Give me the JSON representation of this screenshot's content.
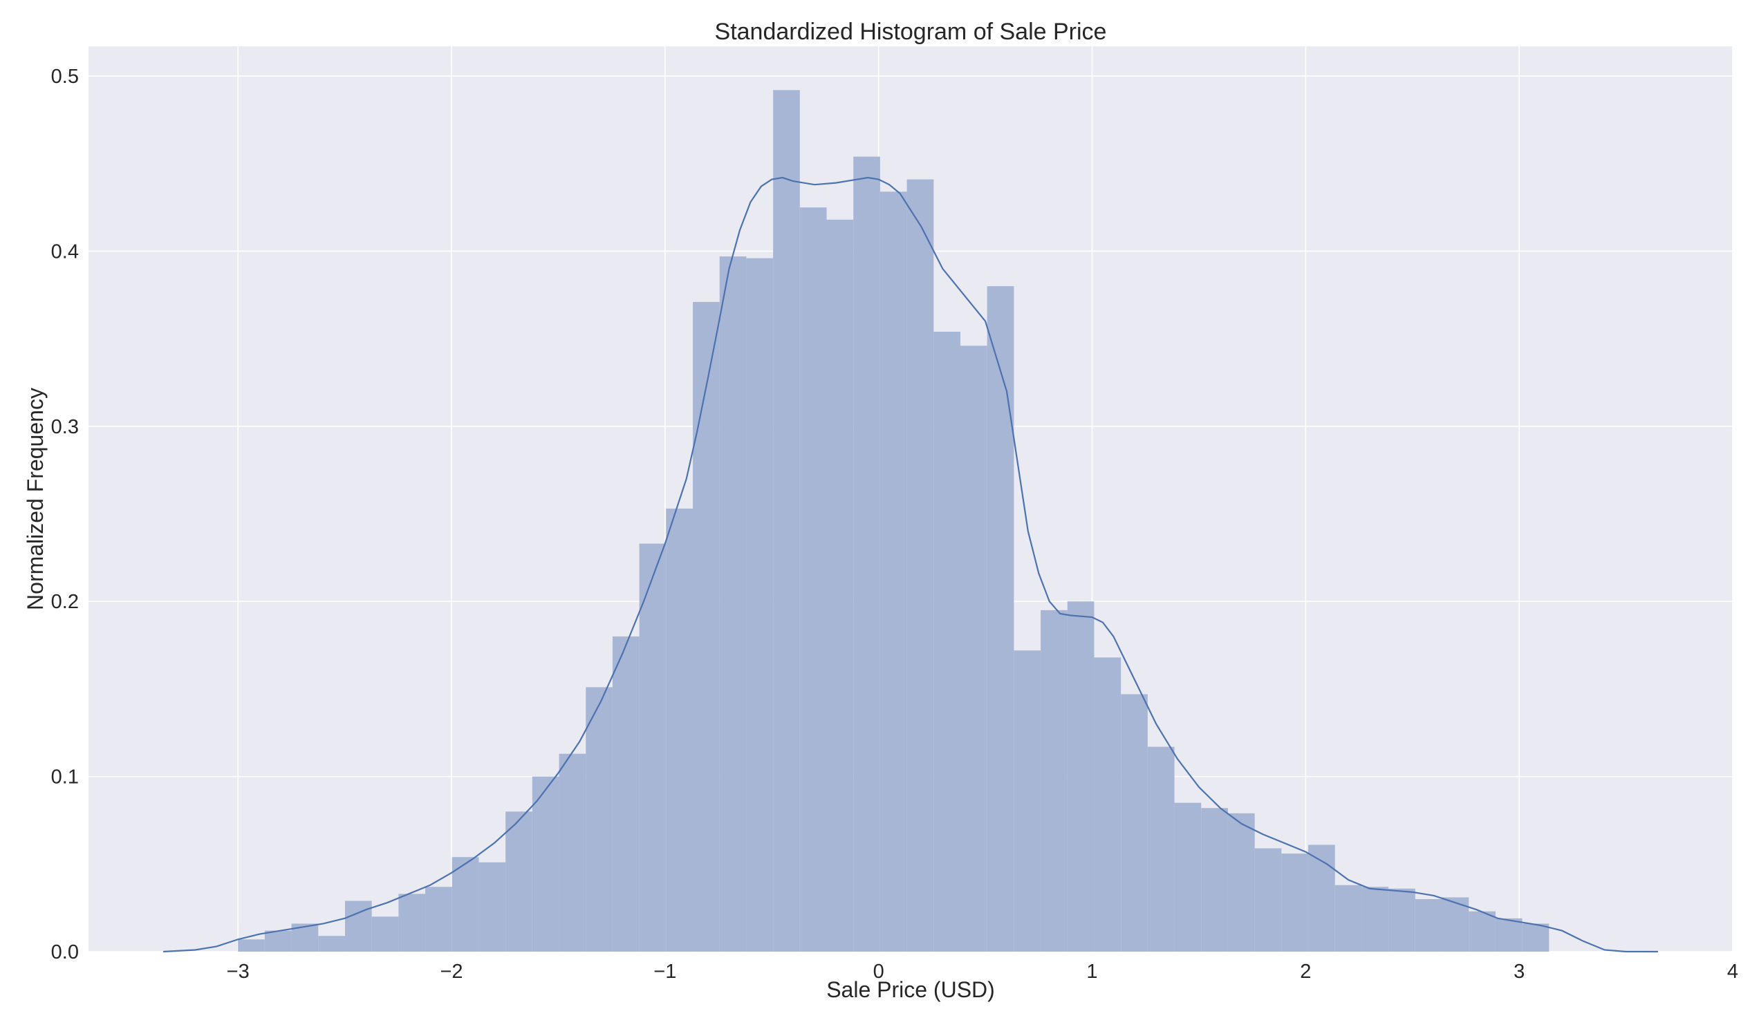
{
  "chart_data": {
    "type": "bar",
    "title": "Standardized Histogram of Sale Price",
    "xlabel": "Sale Price (USD)",
    "ylabel": "Normalized Frequency",
    "xlim": [
      -3.7,
      4.0
    ],
    "ylim": [
      0,
      0.517
    ],
    "xticks": [
      -3,
      -2,
      -1,
      0,
      1,
      2,
      3,
      4
    ],
    "xtick_labels": [
      "−3",
      "−2",
      "−1",
      "0",
      "1",
      "2",
      "3",
      "4"
    ],
    "yticks": [
      0,
      0.1,
      0.2,
      0.3,
      0.4,
      0.5
    ],
    "ytick_labels": [
      "0.0",
      "0.1",
      "0.2",
      "0.3",
      "0.4",
      "0.5"
    ],
    "grid": true,
    "colors": {
      "background": "#eaeaf2",
      "bar": "#a8b6d5",
      "line": "#4c72b0",
      "grid": "#ffffff"
    },
    "histogram": {
      "bin_start": -3.0,
      "bin_width": 0.1253,
      "values": [
        0.007,
        0.012,
        0.016,
        0.009,
        0.029,
        0.02,
        0.033,
        0.037,
        0.054,
        0.051,
        0.08,
        0.1,
        0.113,
        0.151,
        0.18,
        0.233,
        0.253,
        0.371,
        0.397,
        0.396,
        0.492,
        0.425,
        0.418,
        0.454,
        0.434,
        0.441,
        0.354,
        0.346,
        0.38,
        0.172,
        0.195,
        0.2,
        0.168,
        0.147,
        0.117,
        0.085,
        0.082,
        0.079,
        0.059,
        0.056,
        0.061,
        0.038,
        0.037,
        0.036,
        0.03,
        0.031,
        0.023,
        0.019,
        0.016
      ]
    },
    "kde": {
      "x": [
        -3.35,
        -3.2,
        -3.1,
        -3.0,
        -2.9,
        -2.8,
        -2.7,
        -2.6,
        -2.5,
        -2.4,
        -2.3,
        -2.2,
        -2.1,
        -2.0,
        -1.9,
        -1.8,
        -1.7,
        -1.6,
        -1.5,
        -1.4,
        -1.3,
        -1.2,
        -1.1,
        -1.0,
        -0.9,
        -0.85,
        -0.8,
        -0.75,
        -0.7,
        -0.65,
        -0.6,
        -0.55,
        -0.5,
        -0.45,
        -0.4,
        -0.3,
        -0.2,
        -0.1,
        -0.05,
        0.0,
        0.05,
        0.1,
        0.2,
        0.3,
        0.4,
        0.5,
        0.6,
        0.65,
        0.7,
        0.75,
        0.8,
        0.85,
        0.9,
        1.0,
        1.05,
        1.1,
        1.2,
        1.3,
        1.4,
        1.5,
        1.6,
        1.7,
        1.8,
        1.9,
        2.0,
        2.1,
        2.2,
        2.3,
        2.4,
        2.5,
        2.6,
        2.7,
        2.8,
        2.9,
        3.0,
        3.1,
        3.2,
        3.3,
        3.4,
        3.5,
        3.65
      ],
      "y": [
        0.0,
        0.001,
        0.003,
        0.007,
        0.01,
        0.012,
        0.014,
        0.016,
        0.019,
        0.024,
        0.028,
        0.033,
        0.038,
        0.045,
        0.053,
        0.062,
        0.073,
        0.086,
        0.102,
        0.12,
        0.143,
        0.17,
        0.2,
        0.233,
        0.27,
        0.297,
        0.327,
        0.358,
        0.39,
        0.412,
        0.428,
        0.437,
        0.441,
        0.442,
        0.44,
        0.438,
        0.439,
        0.441,
        0.442,
        0.441,
        0.438,
        0.433,
        0.414,
        0.39,
        0.375,
        0.36,
        0.32,
        0.28,
        0.24,
        0.216,
        0.2,
        0.193,
        0.192,
        0.191,
        0.188,
        0.18,
        0.155,
        0.13,
        0.11,
        0.094,
        0.082,
        0.073,
        0.067,
        0.062,
        0.057,
        0.05,
        0.041,
        0.036,
        0.035,
        0.034,
        0.032,
        0.028,
        0.024,
        0.019,
        0.017,
        0.015,
        0.012,
        0.006,
        0.001,
        0.0,
        0.0
      ]
    }
  }
}
